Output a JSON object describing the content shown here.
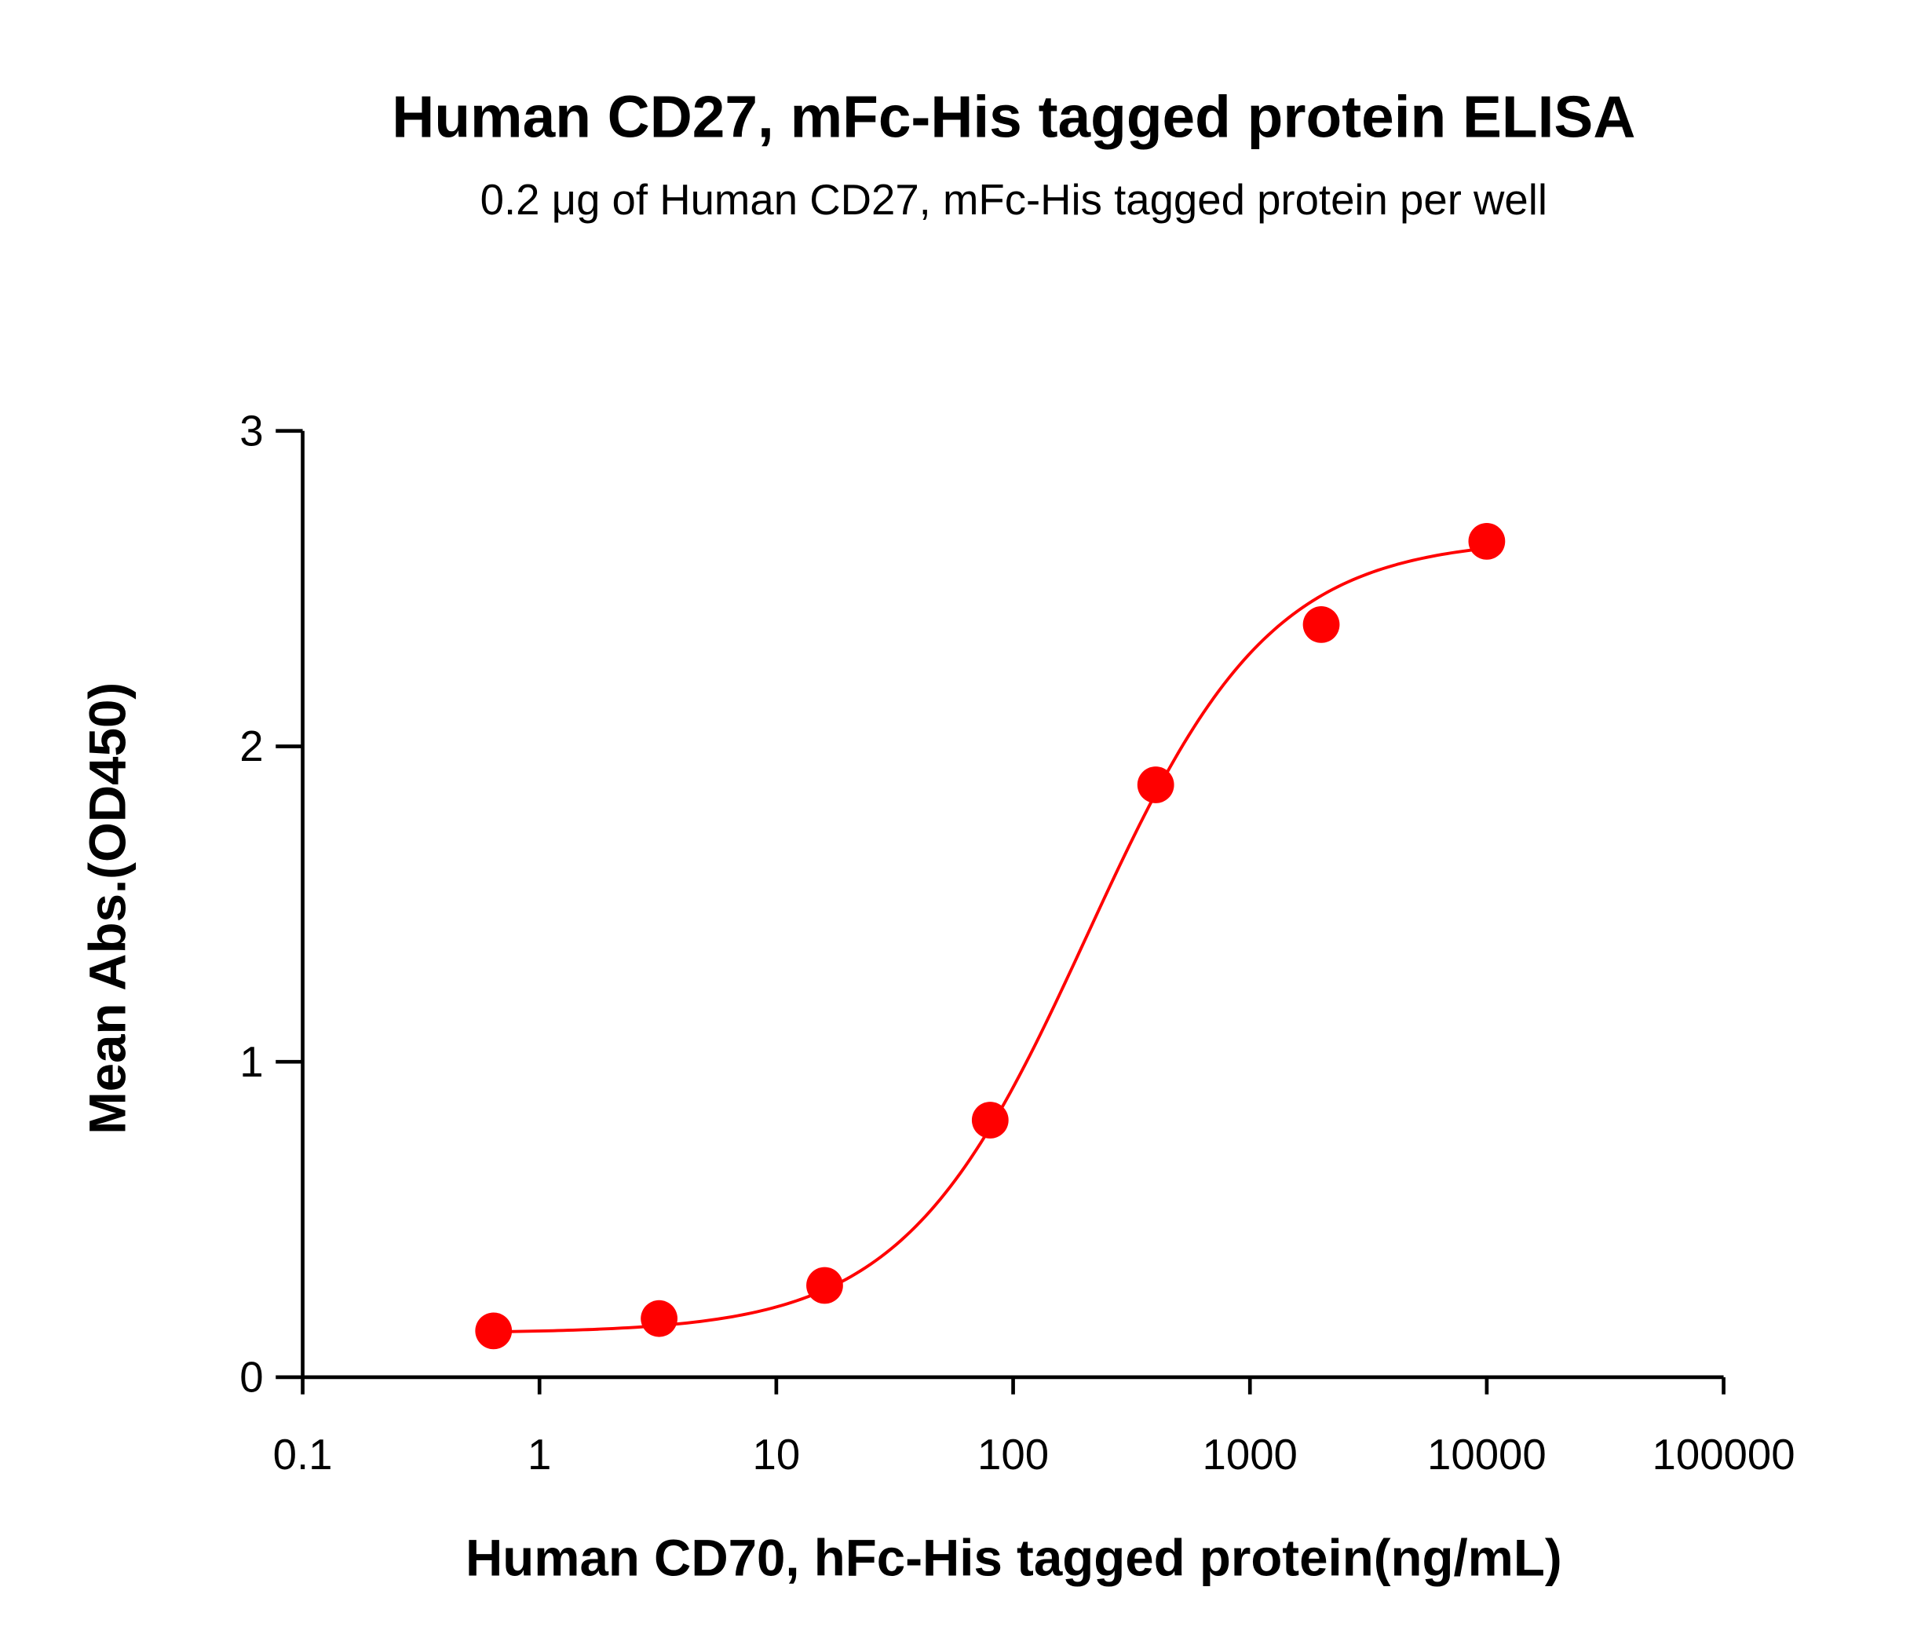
{
  "chart_data": {
    "type": "scatter",
    "title": "Human CD27, mFc-His tagged protein ELISA",
    "subtitle": "0.2 μg of Human CD27, mFc-His tagged protein per well",
    "xlabel": "Human CD70, hFc-His tagged protein(ng/mL)",
    "ylabel": "Mean Abs.(OD450)",
    "xscale": "log",
    "xlim": [
      0.1,
      100000
    ],
    "ylim": [
      0,
      3
    ],
    "xticks": [
      "0.1",
      "1",
      "10",
      "100",
      "1000",
      "10000",
      "100000"
    ],
    "yticks": [
      "0",
      "1",
      "2",
      "3"
    ],
    "grid": false,
    "legend": "none",
    "color": "#ff0000",
    "series": [
      {
        "x": [
          0.64,
          3.2,
          16,
          80,
          400,
          2000,
          10000
        ],
        "y": [
          0.147,
          0.186,
          0.291,
          0.815,
          1.878,
          2.386,
          2.65
        ],
        "fit": "sigmoidal curve"
      }
    ]
  }
}
